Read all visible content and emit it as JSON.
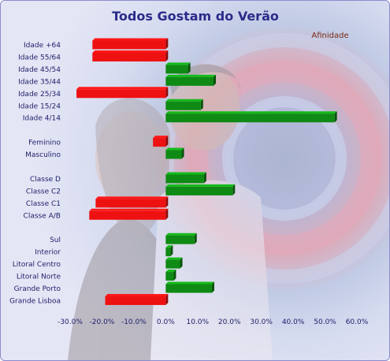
{
  "chart_data": {
    "type": "bar",
    "orientation": "horizontal",
    "title": "Todos Gostam do Verão",
    "legend": [
      "Afinidade"
    ],
    "legend_position": "top-right",
    "xlim": [
      -30,
      60
    ],
    "x_ticks": [
      "-30.0%",
      "-20.0%",
      "-10.0%",
      "0.0%",
      "10.0%",
      "20.0%",
      "30.0%",
      "40.0%",
      "50.0%",
      "60.0%"
    ],
    "categories": [
      "Idade +64",
      "Idade 55/64",
      "Idade 45/54",
      "Idade 35/44",
      "Idade 25/34",
      "Idade 15/24",
      "Idade 4/14",
      "",
      "Feminino",
      "Masculino",
      "",
      "Classe D",
      "Classe C2",
      "Classe C1",
      "Classe A/B",
      "",
      "Sul",
      "Interior",
      "Litoral Centro",
      "Litoral Norte",
      "Grande Porto",
      "Grande Lisboa"
    ],
    "series": [
      {
        "name": "Afinidade",
        "values": [
          -23,
          -23,
          7,
          15,
          -28,
          11,
          53,
          null,
          -4,
          5,
          null,
          12,
          21,
          -22,
          -24,
          null,
          9,
          1.5,
          4.5,
          2.5,
          14.5,
          -19
        ]
      }
    ],
    "colors": {
      "positive": "#0f8a14",
      "negative": "#ee1111"
    },
    "grid": false
  }
}
